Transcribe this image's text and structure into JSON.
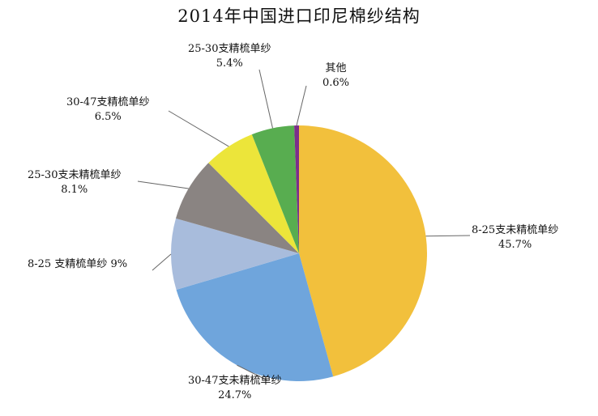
{
  "chart_data": {
    "type": "pie",
    "title": "2014年中国进口印尼棉纱结构",
    "slices": [
      {
        "label": "8-25支未精梳单纱",
        "value": 45.7,
        "value_label": "45.7%",
        "color": "#f2c03c"
      },
      {
        "label": "30-47支未精梳单纱",
        "value": 24.7,
        "value_label": "24.7%",
        "color": "#6fa5dc"
      },
      {
        "label": "8-25 支精梳单纱",
        "value": 9.0,
        "value_label": "9%",
        "color": "#a8bcdc"
      },
      {
        "label": "25-30支未精梳单纱",
        "value": 8.1,
        "value_label": "8.1%",
        "color": "#8a8482"
      },
      {
        "label": "30-47支精梳单纱",
        "value": 6.5,
        "value_label": "6.5%",
        "color": "#ece53a"
      },
      {
        "label": "25-30支精梳单纱",
        "value": 5.4,
        "value_label": "5.4%",
        "color": "#58ad50"
      },
      {
        "label": "其他",
        "value": 0.6,
        "value_label": "0.6%",
        "color": "#7c2e8a"
      }
    ],
    "legend": "none"
  }
}
